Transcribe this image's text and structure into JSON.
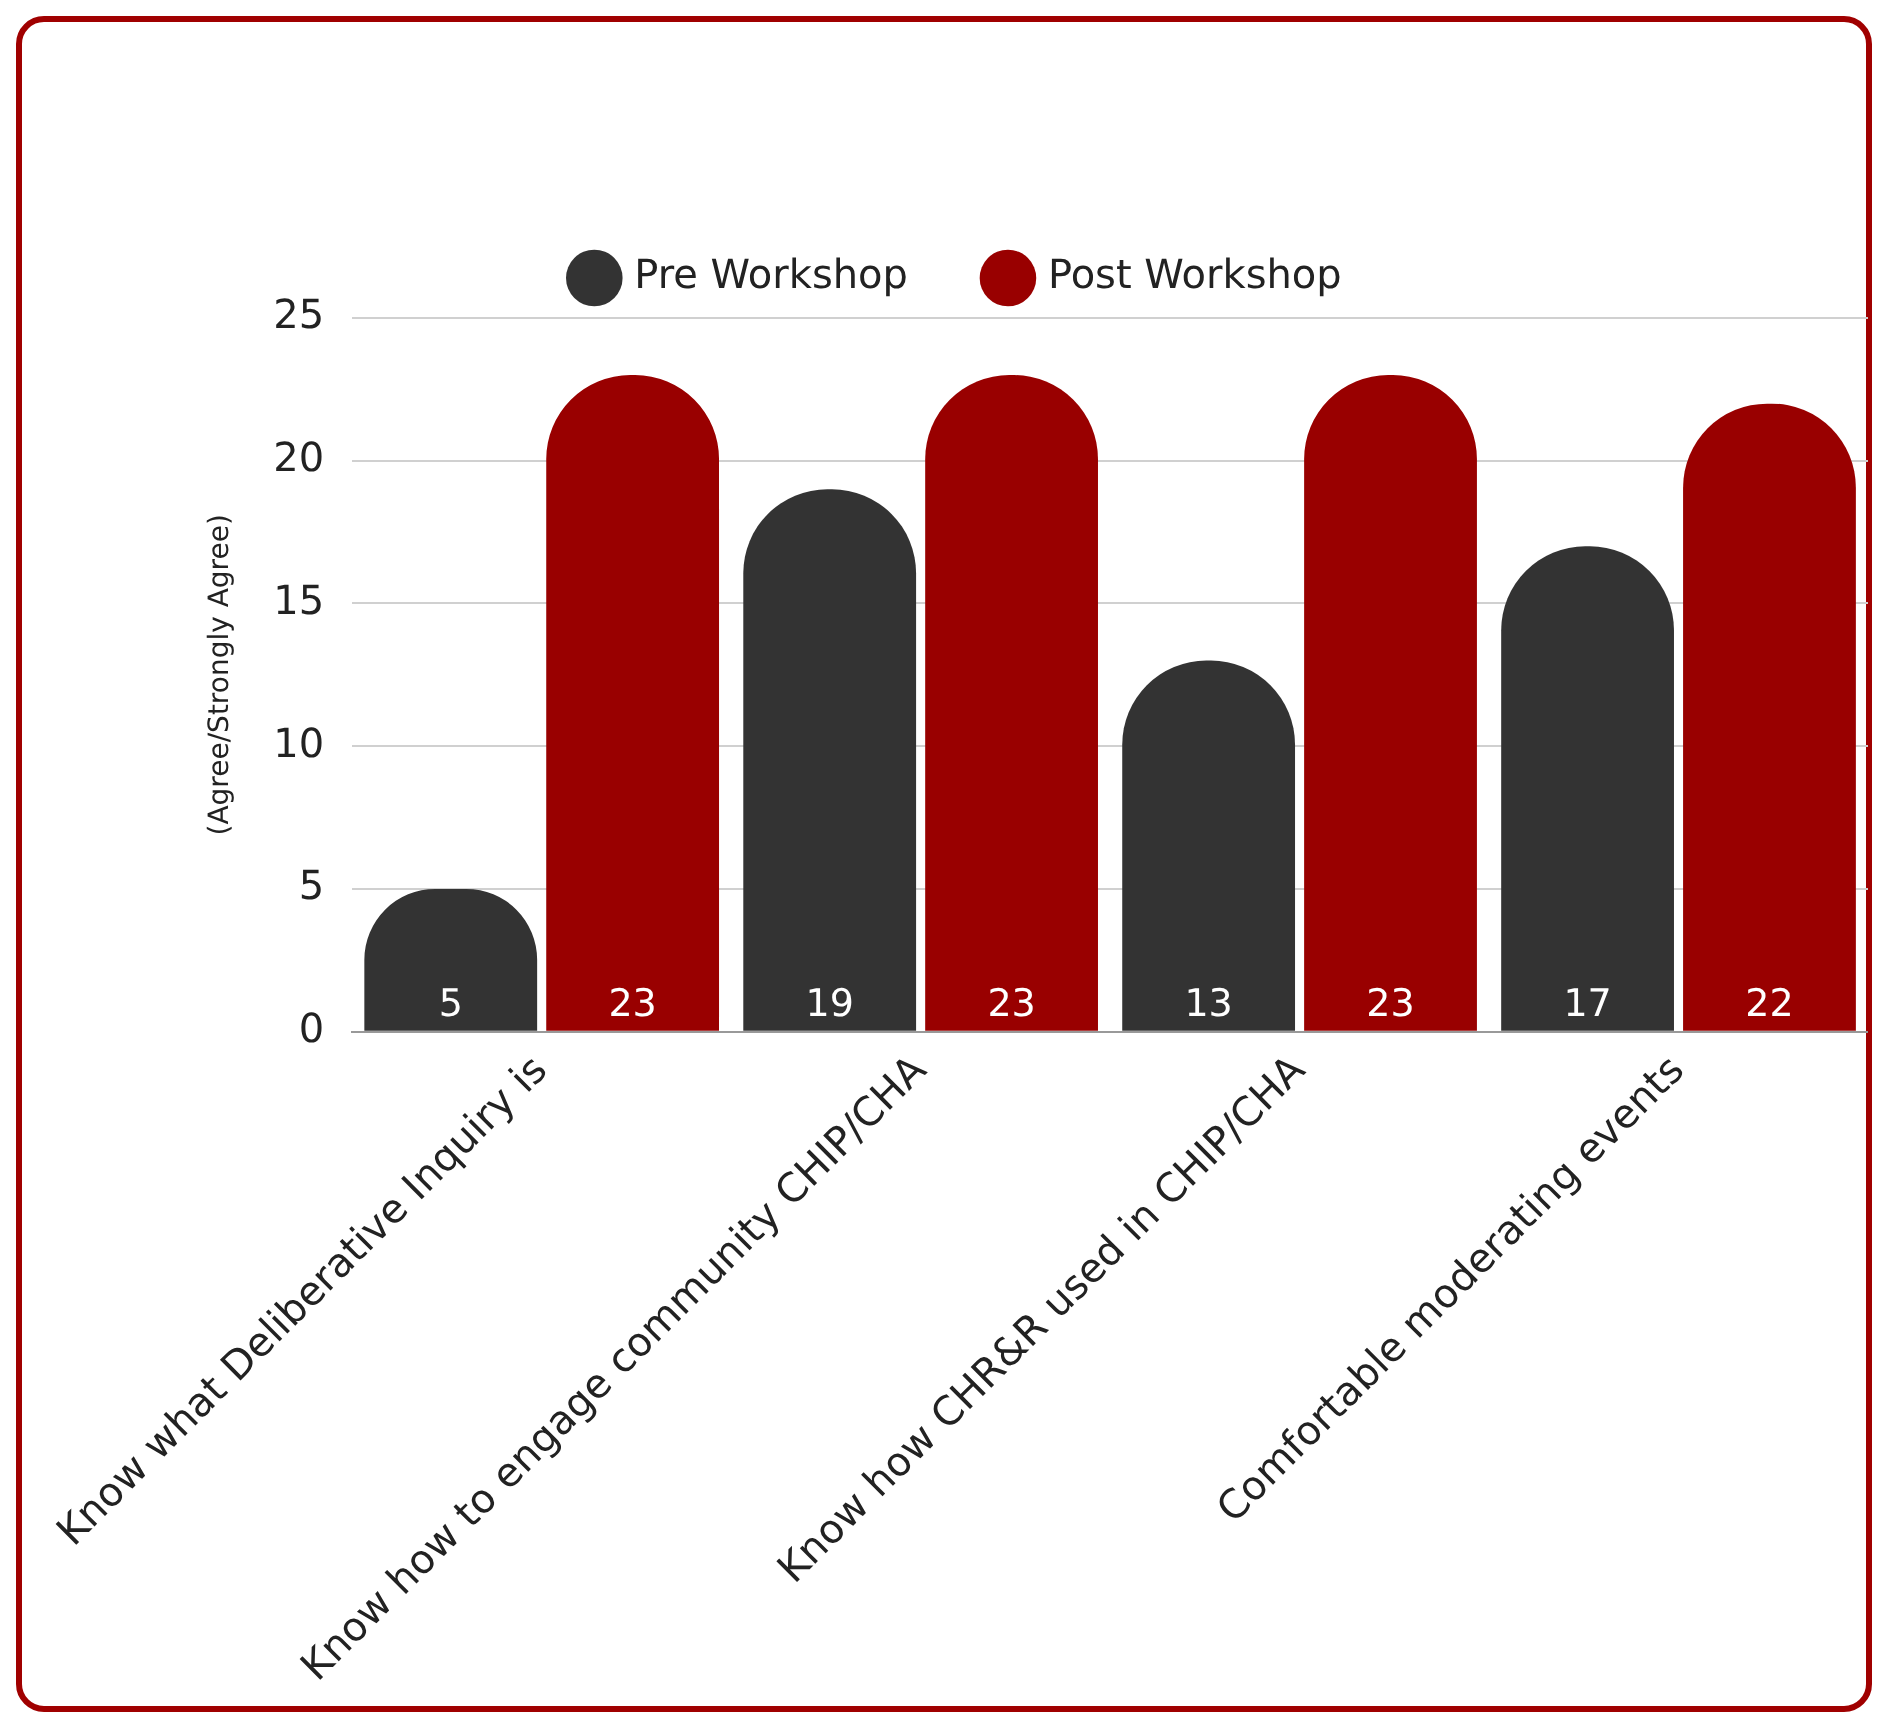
{
  "chart_data": {
    "type": "bar",
    "ylabel": "(Agree/Strongly Agree)",
    "categories": [
      "Know what Deliberative Inquiry is",
      "Know how to engage community CHIP/CHA",
      "Know how CHR&R used in CHIP/CHA",
      "Comfortable moderating events"
    ],
    "series": [
      {
        "name": "Pre Workshop",
        "color": "#333333",
        "values": [
          5,
          19,
          13,
          17
        ]
      },
      {
        "name": "Post Workshop",
        "color": "#990000",
        "values": [
          23,
          23,
          23,
          22
        ]
      }
    ],
    "ylim": [
      0,
      25
    ],
    "yticks": [
      0,
      5,
      10,
      15,
      20,
      25
    ],
    "grid": "y",
    "legend": "top",
    "data_labels": true
  }
}
